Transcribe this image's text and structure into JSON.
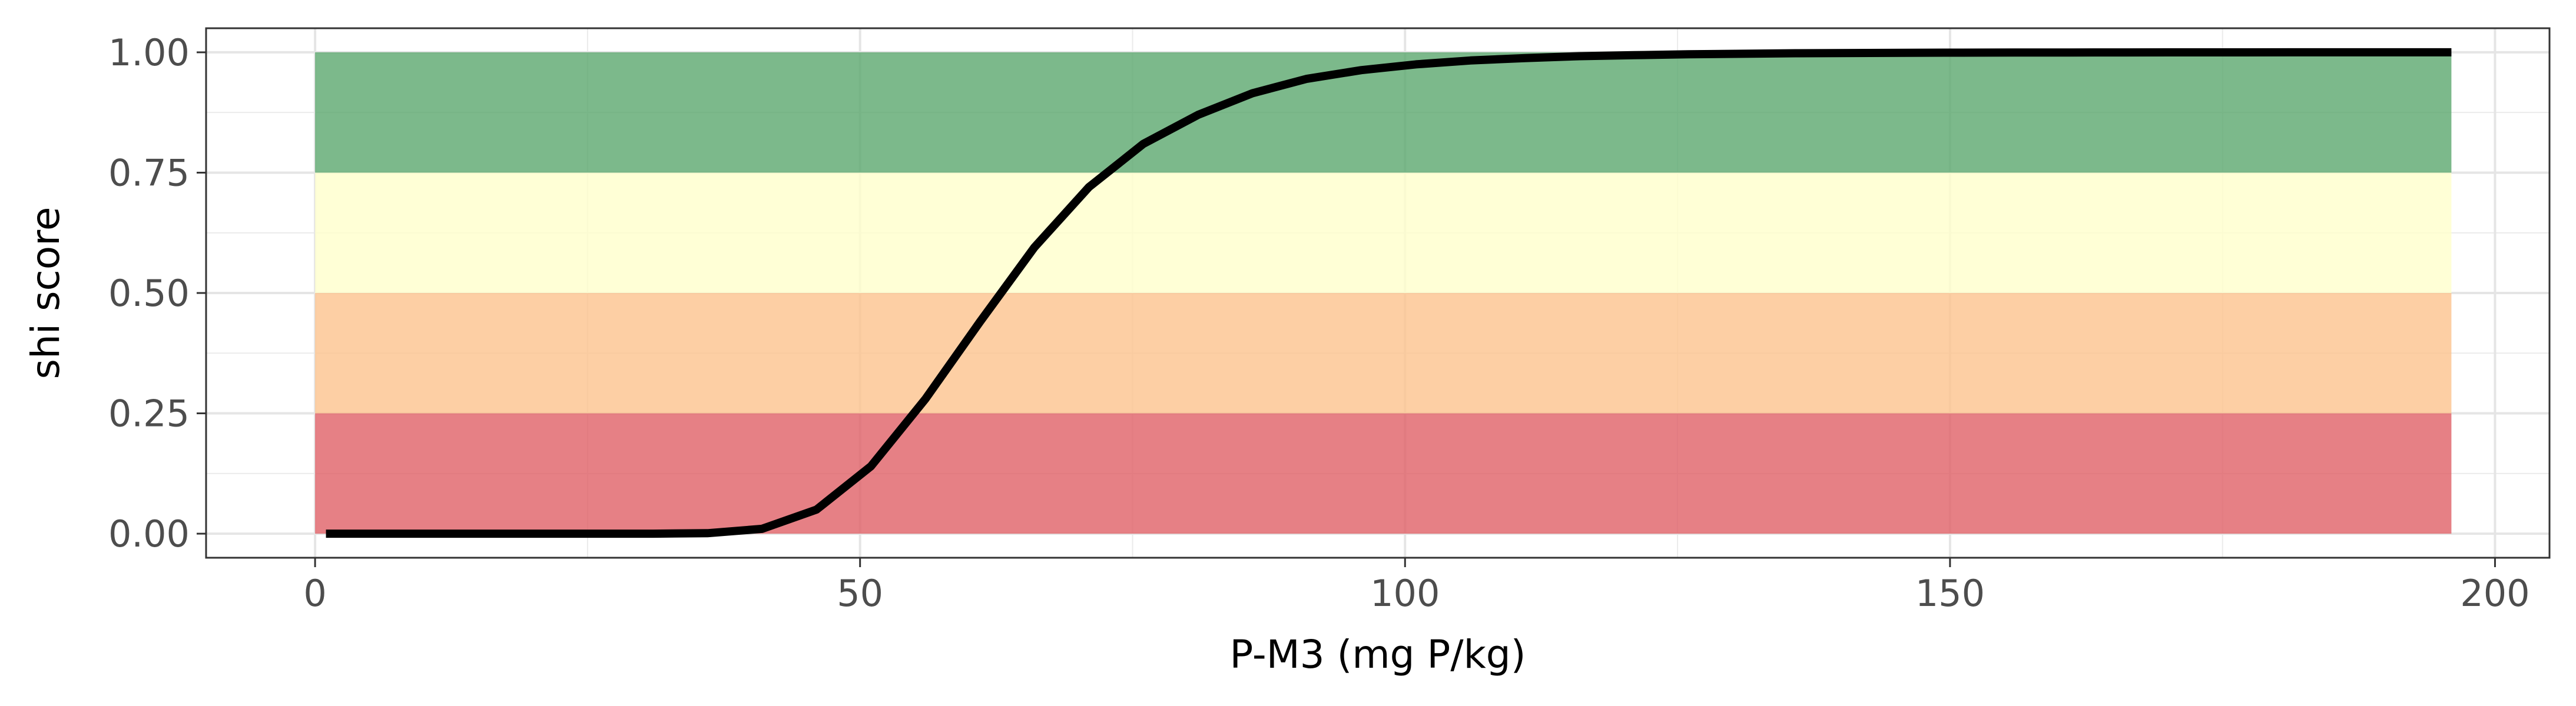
{
  "chart_data": {
    "type": "line",
    "title": "",
    "xlabel": "P-M3 (mg P/kg)",
    "ylabel": "shi score",
    "xlim": [
      -10,
      205
    ],
    "ylim": [
      -0.05,
      1.05
    ],
    "x_ticks": [
      0,
      50,
      100,
      150,
      200
    ],
    "x_tick_labels": [
      "0",
      "50",
      "100",
      "150",
      "200"
    ],
    "y_ticks": [
      0,
      0.25,
      0.5,
      0.75,
      1
    ],
    "y_tick_labels": [
      "0.00",
      "0.25",
      "0.50",
      "0.75",
      "1.00"
    ],
    "grid": true,
    "legend": "none",
    "bands": [
      {
        "x_from": 0,
        "x_to": 196,
        "y_from": 0.0,
        "y_to": 0.25,
        "color": "#E06066"
      },
      {
        "x_from": 0,
        "x_to": 196,
        "y_from": 0.25,
        "y_to": 0.5,
        "color": "#FDC38D"
      },
      {
        "x_from": 0,
        "x_to": 196,
        "y_from": 0.5,
        "y_to": 0.75,
        "color": "#FFFFCC"
      },
      {
        "x_from": 0,
        "x_to": 196,
        "y_from": 0.75,
        "y_to": 1.0,
        "color": "#5BA86E"
      }
    ],
    "series": [
      {
        "color": "#000000",
        "x": [
          1,
          6,
          11,
          16,
          21,
          26,
          31,
          36,
          41,
          46,
          51,
          56,
          61,
          66,
          71,
          76,
          81,
          86,
          91,
          96,
          101,
          106,
          111,
          116,
          121,
          126,
          131,
          136,
          141,
          146,
          151,
          156,
          161,
          166,
          171,
          176,
          181,
          186,
          191,
          196
        ],
        "y": [
          0,
          0,
          0,
          0,
          0,
          0,
          0,
          0.001,
          0.01,
          0.05,
          0.14,
          0.28,
          0.44,
          0.595,
          0.72,
          0.81,
          0.87,
          0.915,
          0.945,
          0.963,
          0.975,
          0.983,
          0.988,
          0.992,
          0.994,
          0.996,
          0.997,
          0.998,
          0.9985,
          0.999,
          0.9993,
          0.9995,
          0.9997,
          0.9998,
          0.9999,
          0.9999,
          1,
          1,
          1,
          1
        ]
      }
    ]
  }
}
